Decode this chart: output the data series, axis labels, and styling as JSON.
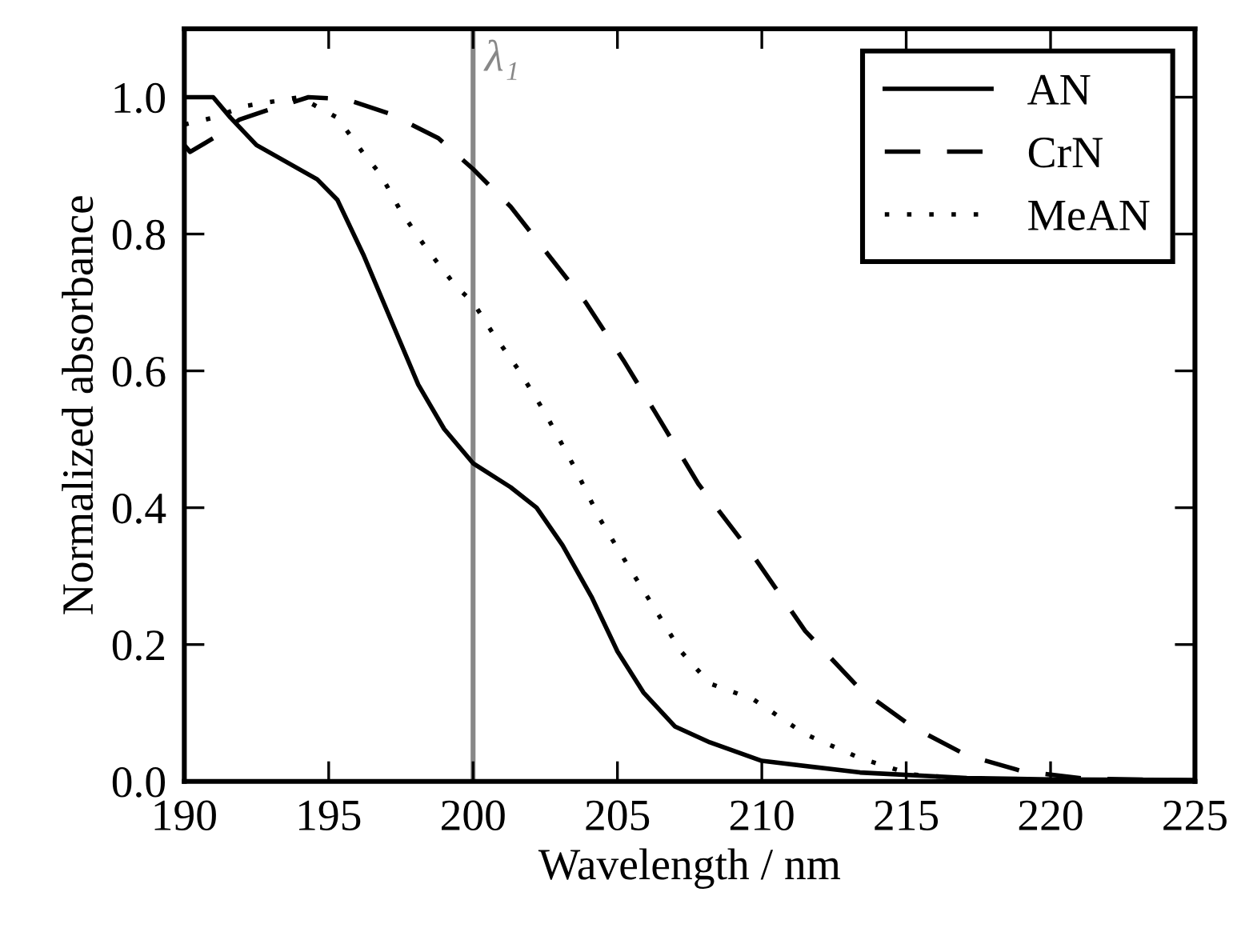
{
  "chart_data": {
    "type": "line",
    "xlabel": "Wavelength / nm",
    "ylabel": "Normalized absorbance",
    "xlim": [
      190,
      225
    ],
    "ylim": [
      0,
      1.1
    ],
    "xticks": [
      190,
      195,
      200,
      205,
      210,
      215,
      220,
      225
    ],
    "yticks": [
      {
        "value": 0,
        "label": "0.0"
      },
      {
        "value": 0.2,
        "label": "0.2"
      },
      {
        "value": 0.4,
        "label": "0.4"
      },
      {
        "value": 0.6,
        "label": "0.6"
      },
      {
        "value": 0.8,
        "label": "0.8"
      },
      {
        "value": 1.0,
        "label": "1.0"
      }
    ],
    "grid": false,
    "legend": "top right",
    "ref_lines": [
      {
        "axis": "x",
        "value": 200,
        "label": "λ₁",
        "color": "#888888"
      }
    ],
    "series": [
      {
        "name": "AN",
        "color": "#000000",
        "line_style": "solid",
        "x": [
          190.0,
          191.0,
          191.6,
          192.5,
          194.6,
          195.3,
          196.2,
          197.2,
          198.1,
          199.0,
          200.0,
          201.3,
          202.2,
          203.1,
          204.1,
          205.0,
          205.9,
          207.0,
          208.2,
          210.0,
          213.4,
          217.1,
          220.0,
          225.0
        ],
        "values": [
          1.0,
          1.0,
          0.97,
          0.93,
          0.88,
          0.85,
          0.77,
          0.67,
          0.58,
          0.515,
          0.465,
          0.43,
          0.4,
          0.345,
          0.27,
          0.19,
          0.13,
          0.08,
          0.057,
          0.03,
          0.013,
          0.005,
          0.003,
          0.002
        ]
      },
      {
        "name": "CrN",
        "color": "#000000",
        "line_style": "dashed",
        "x": [
          190.0,
          190.2,
          191.0,
          191.9,
          192.8,
          194.3,
          195.6,
          197.1,
          198.8,
          200.0,
          201.3,
          202.6,
          203.9,
          205.2,
          206.3,
          207.8,
          209.7,
          211.5,
          213.4,
          215.2,
          217.1,
          219.0,
          221.2,
          225.0
        ],
        "values": [
          0.93,
          0.92,
          0.94,
          0.967,
          0.98,
          1.0,
          0.997,
          0.976,
          0.94,
          0.895,
          0.84,
          0.77,
          0.7,
          0.616,
          0.54,
          0.435,
          0.33,
          0.22,
          0.135,
          0.08,
          0.038,
          0.015,
          0.004,
          0.001
        ]
      },
      {
        "name": "MeAN",
        "color": "#000000",
        "line_style": "dotted",
        "x": [
          190.0,
          191.0,
          192.1,
          194.0,
          195.3,
          196.2,
          196.8,
          197.5,
          198.4,
          199.4,
          200.0,
          200.7,
          201.6,
          202.5,
          203.5,
          204.4,
          205.4,
          206.3,
          207.2,
          208.2,
          209.7,
          211.5,
          213.4,
          215.2,
          217.1,
          225.0
        ],
        "values": [
          0.96,
          0.97,
          0.987,
          1.0,
          0.97,
          0.918,
          0.887,
          0.833,
          0.778,
          0.724,
          0.7,
          0.654,
          0.6,
          0.538,
          0.46,
          0.383,
          0.313,
          0.252,
          0.19,
          0.143,
          0.12,
          0.069,
          0.034,
          0.01,
          0.004,
          0.0
        ]
      }
    ]
  }
}
